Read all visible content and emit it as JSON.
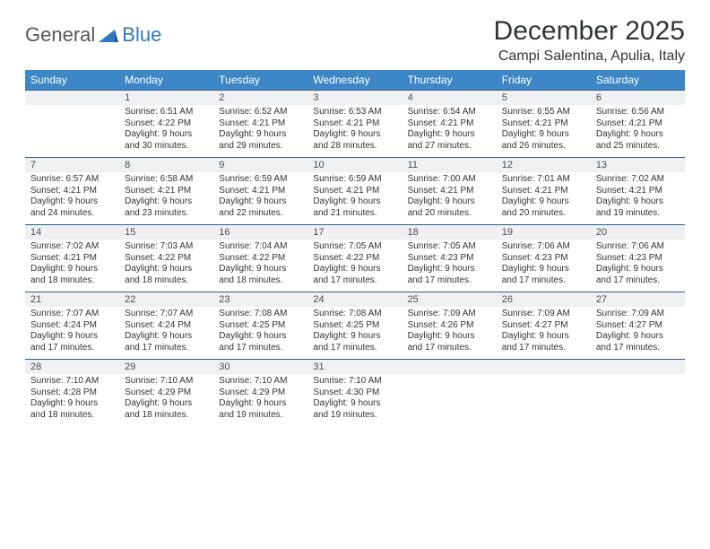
{
  "brand": {
    "part1": "General",
    "part2": "Blue"
  },
  "title": "December 2025",
  "location": "Campi Salentina, Apulia, Italy",
  "colors": {
    "header_bg": "#3d87c7",
    "header_text": "#ffffff",
    "daynum_bg": "#eef0f1",
    "row_divider": "#2f5d88",
    "brand_gray": "#53585c",
    "brand_blue": "#2f78bf",
    "text": "#333333",
    "page_bg": "#ffffff"
  },
  "typography": {
    "title_fontsize": 30,
    "location_fontsize": 16,
    "weekday_fontsize": 12,
    "daynum_fontsize": 11,
    "body_fontsize": 10
  },
  "weekdays": [
    "Sunday",
    "Monday",
    "Tuesday",
    "Wednesday",
    "Thursday",
    "Friday",
    "Saturday"
  ],
  "weeks": [
    [
      null,
      {
        "n": "1",
        "sr": "Sunrise: 6:51 AM",
        "ss": "Sunset: 4:22 PM",
        "d1": "Daylight: 9 hours",
        "d2": "and 30 minutes."
      },
      {
        "n": "2",
        "sr": "Sunrise: 6:52 AM",
        "ss": "Sunset: 4:21 PM",
        "d1": "Daylight: 9 hours",
        "d2": "and 29 minutes."
      },
      {
        "n": "3",
        "sr": "Sunrise: 6:53 AM",
        "ss": "Sunset: 4:21 PM",
        "d1": "Daylight: 9 hours",
        "d2": "and 28 minutes."
      },
      {
        "n": "4",
        "sr": "Sunrise: 6:54 AM",
        "ss": "Sunset: 4:21 PM",
        "d1": "Daylight: 9 hours",
        "d2": "and 27 minutes."
      },
      {
        "n": "5",
        "sr": "Sunrise: 6:55 AM",
        "ss": "Sunset: 4:21 PM",
        "d1": "Daylight: 9 hours",
        "d2": "and 26 minutes."
      },
      {
        "n": "6",
        "sr": "Sunrise: 6:56 AM",
        "ss": "Sunset: 4:21 PM",
        "d1": "Daylight: 9 hours",
        "d2": "and 25 minutes."
      }
    ],
    [
      {
        "n": "7",
        "sr": "Sunrise: 6:57 AM",
        "ss": "Sunset: 4:21 PM",
        "d1": "Daylight: 9 hours",
        "d2": "and 24 minutes."
      },
      {
        "n": "8",
        "sr": "Sunrise: 6:58 AM",
        "ss": "Sunset: 4:21 PM",
        "d1": "Daylight: 9 hours",
        "d2": "and 23 minutes."
      },
      {
        "n": "9",
        "sr": "Sunrise: 6:59 AM",
        "ss": "Sunset: 4:21 PM",
        "d1": "Daylight: 9 hours",
        "d2": "and 22 minutes."
      },
      {
        "n": "10",
        "sr": "Sunrise: 6:59 AM",
        "ss": "Sunset: 4:21 PM",
        "d1": "Daylight: 9 hours",
        "d2": "and 21 minutes."
      },
      {
        "n": "11",
        "sr": "Sunrise: 7:00 AM",
        "ss": "Sunset: 4:21 PM",
        "d1": "Daylight: 9 hours",
        "d2": "and 20 minutes."
      },
      {
        "n": "12",
        "sr": "Sunrise: 7:01 AM",
        "ss": "Sunset: 4:21 PM",
        "d1": "Daylight: 9 hours",
        "d2": "and 20 minutes."
      },
      {
        "n": "13",
        "sr": "Sunrise: 7:02 AM",
        "ss": "Sunset: 4:21 PM",
        "d1": "Daylight: 9 hours",
        "d2": "and 19 minutes."
      }
    ],
    [
      {
        "n": "14",
        "sr": "Sunrise: 7:02 AM",
        "ss": "Sunset: 4:21 PM",
        "d1": "Daylight: 9 hours",
        "d2": "and 18 minutes."
      },
      {
        "n": "15",
        "sr": "Sunrise: 7:03 AM",
        "ss": "Sunset: 4:22 PM",
        "d1": "Daylight: 9 hours",
        "d2": "and 18 minutes."
      },
      {
        "n": "16",
        "sr": "Sunrise: 7:04 AM",
        "ss": "Sunset: 4:22 PM",
        "d1": "Daylight: 9 hours",
        "d2": "and 18 minutes."
      },
      {
        "n": "17",
        "sr": "Sunrise: 7:05 AM",
        "ss": "Sunset: 4:22 PM",
        "d1": "Daylight: 9 hours",
        "d2": "and 17 minutes."
      },
      {
        "n": "18",
        "sr": "Sunrise: 7:05 AM",
        "ss": "Sunset: 4:23 PM",
        "d1": "Daylight: 9 hours",
        "d2": "and 17 minutes."
      },
      {
        "n": "19",
        "sr": "Sunrise: 7:06 AM",
        "ss": "Sunset: 4:23 PM",
        "d1": "Daylight: 9 hours",
        "d2": "and 17 minutes."
      },
      {
        "n": "20",
        "sr": "Sunrise: 7:06 AM",
        "ss": "Sunset: 4:23 PM",
        "d1": "Daylight: 9 hours",
        "d2": "and 17 minutes."
      }
    ],
    [
      {
        "n": "21",
        "sr": "Sunrise: 7:07 AM",
        "ss": "Sunset: 4:24 PM",
        "d1": "Daylight: 9 hours",
        "d2": "and 17 minutes."
      },
      {
        "n": "22",
        "sr": "Sunrise: 7:07 AM",
        "ss": "Sunset: 4:24 PM",
        "d1": "Daylight: 9 hours",
        "d2": "and 17 minutes."
      },
      {
        "n": "23",
        "sr": "Sunrise: 7:08 AM",
        "ss": "Sunset: 4:25 PM",
        "d1": "Daylight: 9 hours",
        "d2": "and 17 minutes."
      },
      {
        "n": "24",
        "sr": "Sunrise: 7:08 AM",
        "ss": "Sunset: 4:25 PM",
        "d1": "Daylight: 9 hours",
        "d2": "and 17 minutes."
      },
      {
        "n": "25",
        "sr": "Sunrise: 7:09 AM",
        "ss": "Sunset: 4:26 PM",
        "d1": "Daylight: 9 hours",
        "d2": "and 17 minutes."
      },
      {
        "n": "26",
        "sr": "Sunrise: 7:09 AM",
        "ss": "Sunset: 4:27 PM",
        "d1": "Daylight: 9 hours",
        "d2": "and 17 minutes."
      },
      {
        "n": "27",
        "sr": "Sunrise: 7:09 AM",
        "ss": "Sunset: 4:27 PM",
        "d1": "Daylight: 9 hours",
        "d2": "and 17 minutes."
      }
    ],
    [
      {
        "n": "28",
        "sr": "Sunrise: 7:10 AM",
        "ss": "Sunset: 4:28 PM",
        "d1": "Daylight: 9 hours",
        "d2": "and 18 minutes."
      },
      {
        "n": "29",
        "sr": "Sunrise: 7:10 AM",
        "ss": "Sunset: 4:29 PM",
        "d1": "Daylight: 9 hours",
        "d2": "and 18 minutes."
      },
      {
        "n": "30",
        "sr": "Sunrise: 7:10 AM",
        "ss": "Sunset: 4:29 PM",
        "d1": "Daylight: 9 hours",
        "d2": "and 19 minutes."
      },
      {
        "n": "31",
        "sr": "Sunrise: 7:10 AM",
        "ss": "Sunset: 4:30 PM",
        "d1": "Daylight: 9 hours",
        "d2": "and 19 minutes."
      },
      null,
      null,
      null
    ]
  ]
}
